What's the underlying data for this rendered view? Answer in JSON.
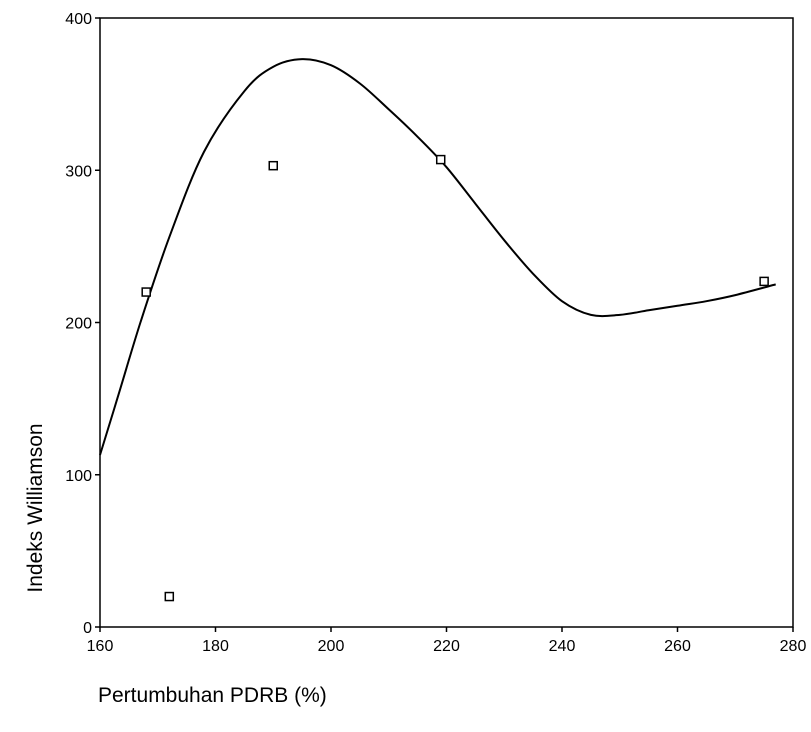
{
  "chart_data": {
    "type": "scatter",
    "title": "",
    "xlabel": "Pertumbuhan PDRB (%)",
    "ylabel": "Indeks Williamson",
    "xlim": [
      160,
      280
    ],
    "ylim": [
      0,
      400
    ],
    "x_ticks": [
      160,
      180,
      200,
      220,
      240,
      260,
      280
    ],
    "y_ticks": [
      0,
      100,
      200,
      300,
      400
    ],
    "x_tick_labels": [
      "160",
      "180",
      "200",
      "220",
      "240",
      "260",
      "280"
    ],
    "y_tick_labels": [
      "0",
      "100",
      "200",
      "300",
      "400"
    ],
    "grid": false,
    "legend": "none",
    "series": [
      {
        "type": "scatter",
        "marker": "open-square",
        "x": [
          168,
          172,
          190,
          219,
          275
        ],
        "y": [
          220,
          20,
          303,
          307,
          227
        ]
      },
      {
        "type": "line",
        "style": "fitted-curve",
        "x": [
          160,
          163,
          167,
          172,
          178,
          185,
          190,
          195,
          200,
          205,
          210,
          215,
          220,
          225,
          230,
          235,
          240,
          245,
          250,
          255,
          260,
          265,
          270,
          277
        ],
        "y": [
          113,
          150,
          200,
          256,
          312,
          352,
          368,
          373,
          369,
          357,
          340,
          322,
          302,
          278,
          254,
          232,
          214,
          205,
          205,
          208,
          211,
          214,
          218,
          225
        ]
      }
    ]
  }
}
